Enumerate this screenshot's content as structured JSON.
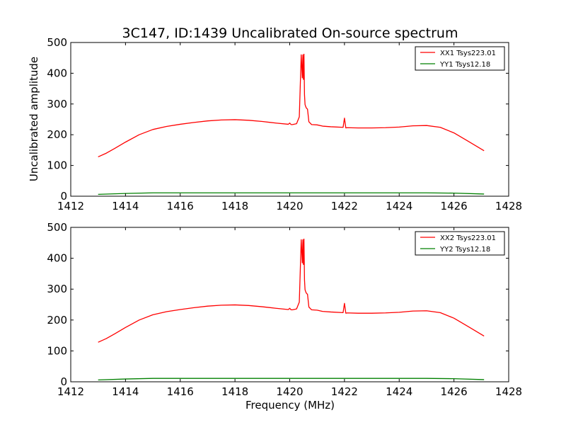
{
  "chart_data": {
    "title": "3C147, ID:1439 Uncalibrated On-source spectrum",
    "xlabel": "Frequency (MHz)",
    "ylabel": "Uncalibrated amplitude",
    "xticks": [
      1412,
      1414,
      1416,
      1418,
      1420,
      1422,
      1424,
      1426,
      1428
    ],
    "yticks": [
      0,
      100,
      200,
      300,
      400,
      500
    ],
    "xlim": [
      1412,
      1428
    ],
    "ylim": [
      0,
      500
    ],
    "legend_position": "top-right",
    "grid": false,
    "subplots": [
      {
        "type": "line",
        "series": [
          {
            "name": "XX1 Tsys223.01",
            "color": "#ff0000",
            "x": [
              1413.0,
              1413.3,
              1413.6,
              1414.0,
              1414.5,
              1415.0,
              1415.5,
              1416.0,
              1416.5,
              1417.0,
              1417.5,
              1418.0,
              1418.5,
              1419.0,
              1419.5,
              1419.95,
              1420.0,
              1420.05,
              1420.1,
              1420.25,
              1420.35,
              1420.42,
              1420.46,
              1420.48,
              1420.5,
              1420.52,
              1420.54,
              1420.56,
              1420.6,
              1420.65,
              1420.7,
              1420.8,
              1421.0,
              1421.2,
              1421.5,
              1421.95,
              1422.0,
              1422.05,
              1422.1,
              1422.5,
              1423.0,
              1423.5,
              1424.0,
              1424.5,
              1425.0,
              1425.5,
              1426.0,
              1426.5,
              1427.1
            ],
            "y": [
              128,
              140,
              155,
              176,
              200,
              217,
              227,
              234,
              240,
              245,
              248,
              249,
              247,
              243,
              238,
              234,
              238,
              233,
              233,
              236,
              258,
              460,
              385,
              460,
              380,
              462,
              330,
              298,
              288,
              283,
              242,
              233,
              232,
              228,
              226,
              224,
              254,
              222,
              223,
              222,
              222,
              223,
              225,
              229,
              230,
              224,
              206,
              180,
              148
            ]
          },
          {
            "name": "YY1 Tsys12.18",
            "color": "#008000",
            "x": [
              1413.0,
              1414.0,
              1415.0,
              1416.0,
              1417.0,
              1418.0,
              1419.0,
              1420.0,
              1421.0,
              1422.0,
              1423.0,
              1424.0,
              1425.0,
              1426.0,
              1427.1
            ],
            "y": [
              6,
              9,
              11,
              11,
              11,
              11,
              11,
              11,
              11,
              11,
              11,
              11,
              11,
              10,
              7
            ]
          }
        ]
      },
      {
        "type": "line",
        "series": [
          {
            "name": "XX2 Tsys223.01",
            "color": "#ff0000",
            "x": [
              1413.0,
              1413.3,
              1413.6,
              1414.0,
              1414.5,
              1415.0,
              1415.5,
              1416.0,
              1416.5,
              1417.0,
              1417.5,
              1418.0,
              1418.5,
              1419.0,
              1419.5,
              1419.95,
              1420.0,
              1420.05,
              1420.1,
              1420.25,
              1420.35,
              1420.42,
              1420.46,
              1420.48,
              1420.5,
              1420.52,
              1420.54,
              1420.56,
              1420.6,
              1420.65,
              1420.7,
              1420.8,
              1421.0,
              1421.2,
              1421.5,
              1421.95,
              1422.0,
              1422.05,
              1422.1,
              1422.5,
              1423.0,
              1423.5,
              1424.0,
              1424.5,
              1425.0,
              1425.5,
              1426.0,
              1426.5,
              1427.1
            ],
            "y": [
              128,
              140,
              155,
              176,
              200,
              217,
              227,
              234,
              240,
              245,
              248,
              249,
              247,
              243,
              238,
              234,
              238,
              233,
              233,
              236,
              258,
              460,
              385,
              460,
              380,
              462,
              330,
              298,
              288,
              283,
              242,
              233,
              232,
              228,
              226,
              224,
              254,
              222,
              223,
              222,
              222,
              223,
              225,
              229,
              230,
              224,
              206,
              180,
              148
            ]
          },
          {
            "name": "YY2 Tsys12.18",
            "color": "#008000",
            "x": [
              1413.0,
              1414.0,
              1415.0,
              1416.0,
              1417.0,
              1418.0,
              1419.0,
              1420.0,
              1421.0,
              1422.0,
              1423.0,
              1424.0,
              1425.0,
              1426.0,
              1427.1
            ],
            "y": [
              6,
              9,
              11,
              11,
              11,
              11,
              11,
              11,
              11,
              11,
              11,
              11,
              11,
              10,
              7
            ]
          }
        ]
      }
    ]
  }
}
